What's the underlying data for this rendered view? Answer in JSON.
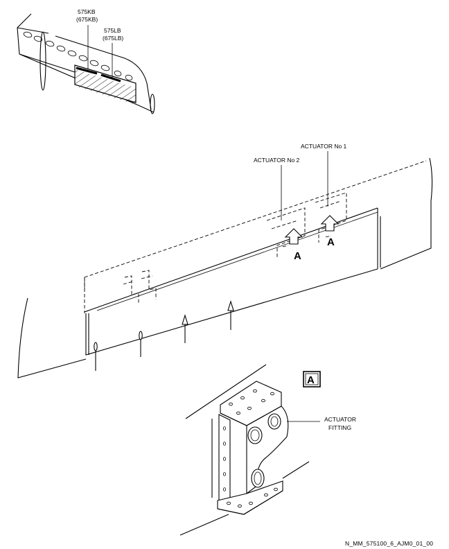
{
  "labels": {
    "part_575kb": "575KB",
    "part_675kb": "(675KB)",
    "part_575lb": "575LB",
    "part_675lb": "(675LB)",
    "actuator_no1": "ACTUATOR No 1",
    "actuator_no2": "ACTUATOR No 2",
    "view_a": "A",
    "detail_a": "A",
    "actuator_fitting_l1": "ACTUATOR",
    "actuator_fitting_l2": "FITTING",
    "figure_ref": "N_MM_575100_6_AJM0_01_00"
  }
}
